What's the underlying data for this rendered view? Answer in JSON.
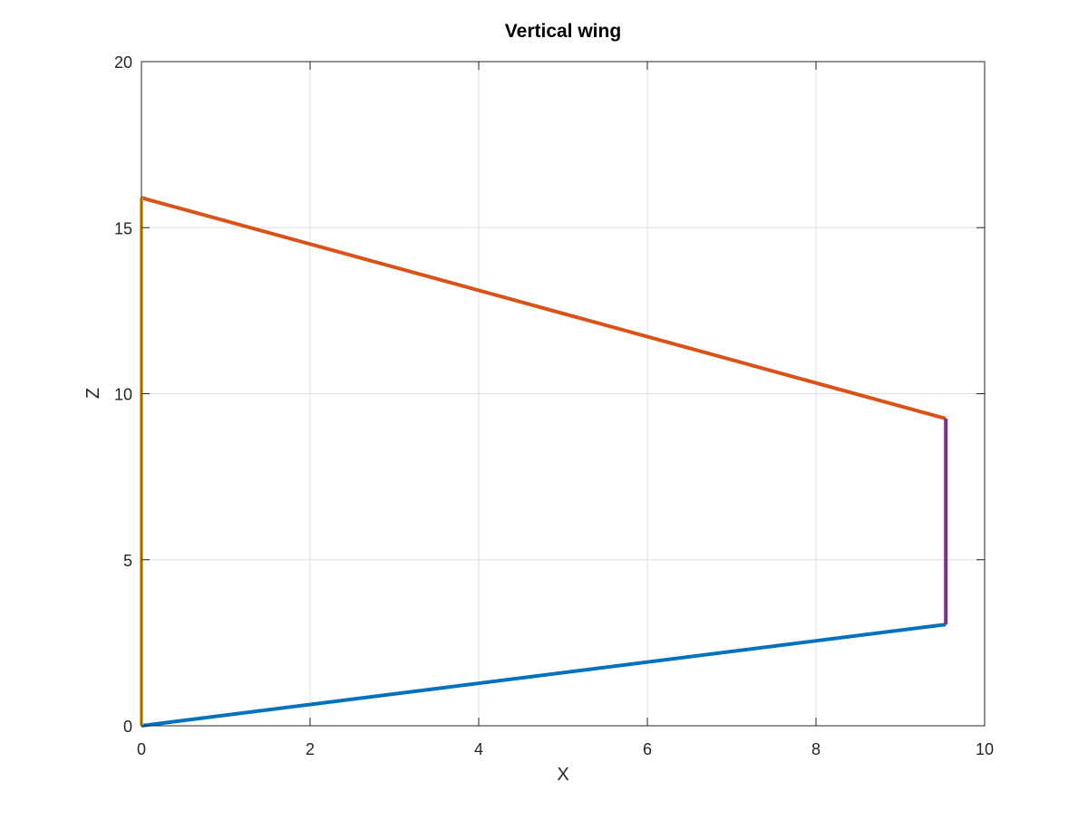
{
  "chart_data": {
    "type": "line",
    "title": "Vertical wing",
    "xlabel": "X",
    "ylabel": "Z",
    "xlim": [
      0,
      10
    ],
    "ylim": [
      0,
      20
    ],
    "xticks": [
      0,
      2,
      4,
      6,
      8,
      10
    ],
    "yticks": [
      0,
      5,
      10,
      15,
      20
    ],
    "xtick_labels": [
      "0",
      "2",
      "4",
      "6",
      "8",
      "10"
    ],
    "ytick_labels": [
      "0",
      "5",
      "10",
      "15",
      "20"
    ],
    "grid": true,
    "legend": "none",
    "series": [
      {
        "color": "#0072BD",
        "x": [
          0,
          9.54
        ],
        "y": [
          0,
          3.05
        ]
      },
      {
        "color": "#D95319",
        "x": [
          0,
          9.54
        ],
        "y": [
          15.9,
          9.25
        ]
      },
      {
        "color": "#EDB120",
        "x": [
          0,
          0
        ],
        "y": [
          0,
          15.9
        ]
      },
      {
        "color": "#7E2F8E",
        "x": [
          9.54,
          9.54
        ],
        "y": [
          3.05,
          9.25
        ]
      }
    ]
  }
}
